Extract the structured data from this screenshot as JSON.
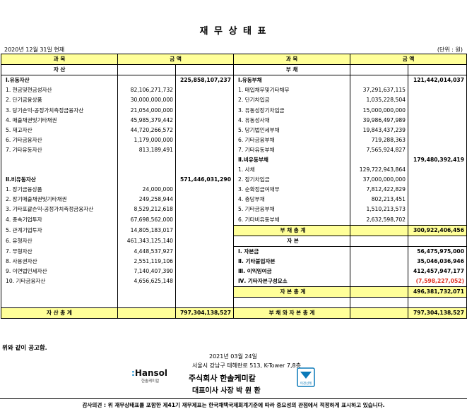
{
  "title": "재 무 상 태 표",
  "date_left": "2020년 12월 31일 현재",
  "unit_right": "(단위 : 원)",
  "headers": {
    "left_item": "과          목",
    "left_amount": "금          액",
    "right_item": "과          목",
    "right_amount": "금          액"
  },
  "subheaders": {
    "assets": "자          산",
    "liabilities": "부          채"
  },
  "left_rows": [
    {
      "label": "Ⅰ.유동자산",
      "a": "",
      "b": "225,858,107,237",
      "bold": true
    },
    {
      "label": "1. 현금및현금성자산",
      "a": "82,106,271,732",
      "b": ""
    },
    {
      "label": "2. 단기금융상품",
      "a": "30,000,000,000",
      "b": ""
    },
    {
      "label": "3. 당기손익-공정가치측정금융자산",
      "a": "21,054,000,000",
      "b": ""
    },
    {
      "label": "4. 매출채권및기타채권",
      "a": "45,985,379,442",
      "b": ""
    },
    {
      "label": "5. 재고자산",
      "a": "44,720,266,572",
      "b": ""
    },
    {
      "label": "6. 기타금융자산",
      "a": "1,179,000,000",
      "b": ""
    },
    {
      "label": "7. 기타유동자산",
      "a": "813,189,491",
      "b": ""
    },
    {
      "label": "",
      "a": "",
      "b": ""
    },
    {
      "label": "",
      "a": "",
      "b": ""
    },
    {
      "label": "Ⅱ.비유동자산",
      "a": "",
      "b": "571,446,031,290",
      "bold": true
    },
    {
      "label": "1. 장기금융상품",
      "a": "24,000,000",
      "b": ""
    },
    {
      "label": "2. 장기매출채권및기타채권",
      "a": "249,258,944",
      "b": ""
    },
    {
      "label": "3. 기타포괄손익-공정가치측정금융자산",
      "a": "8,529,212,618",
      "b": ""
    },
    {
      "label": "4. 종속기업투자",
      "a": "67,698,562,000",
      "b": ""
    },
    {
      "label": "5. 관계기업투자",
      "a": "14,805,183,017",
      "b": ""
    },
    {
      "label": "6. 유형자산",
      "a": "461,343,125,140",
      "b": ""
    },
    {
      "label": "7. 무형자산",
      "a": "4,448,537,927",
      "b": ""
    },
    {
      "label": "8. 사용권자산",
      "a": "2,551,119,106",
      "b": ""
    },
    {
      "label": "9. 이연법인세자산",
      "a": "7,140,407,390",
      "b": ""
    },
    {
      "label": "10. 기타금융자산",
      "a": "4,656,625,148",
      "b": ""
    },
    {
      "label": "",
      "a": "",
      "b": ""
    },
    {
      "label": "",
      "a": "",
      "b": ""
    }
  ],
  "right_rows": [
    {
      "label": "Ⅰ.유동부채",
      "a": "",
      "b": "121,442,014,037",
      "bold": true
    },
    {
      "label": "1. 매입채무및기타채무",
      "a": "37,291,637,115",
      "b": ""
    },
    {
      "label": "2. 단기차입금",
      "a": "1,035,228,504",
      "b": ""
    },
    {
      "label": "3. 유동성장기차입금",
      "a": "15,000,000,000",
      "b": ""
    },
    {
      "label": "4. 유동성사채",
      "a": "39,986,497,989",
      "b": ""
    },
    {
      "label": "5. 당기법인세부채",
      "a": "19,843,437,239",
      "b": ""
    },
    {
      "label": "6. 기타금융부채",
      "a": "719,288,363",
      "b": ""
    },
    {
      "label": "7. 기타유동부채",
      "a": "7,565,924,827",
      "b": ""
    },
    {
      "label": "Ⅱ.비유동부채",
      "a": "",
      "b": "179,480,392,419",
      "bold": true
    },
    {
      "label": "1. 사채",
      "a": "129,722,943,864",
      "b": ""
    },
    {
      "label": "2. 장기차입금",
      "a": "37,000,000,000",
      "b": ""
    },
    {
      "label": "3. 순확정급여채무",
      "a": "7,812,422,829",
      "b": ""
    },
    {
      "label": "4. 충당부채",
      "a": "802,213,451",
      "b": ""
    },
    {
      "label": "5. 기타금융부채",
      "a": "1,510,213,573",
      "b": ""
    },
    {
      "label": "6. 기타비유동부채",
      "a": "2,632,598,702",
      "b": ""
    },
    {
      "label": "부     채     총     계",
      "a": "",
      "b": "300,922,406,456",
      "type": "total"
    },
    {
      "label": "자          본",
      "a": "",
      "b": "",
      "type": "sub"
    },
    {
      "label": "Ⅰ. 자본금",
      "a": "",
      "b": "56,475,975,000",
      "bold": true
    },
    {
      "label": "Ⅱ. 기타불입자본",
      "a": "",
      "b": "35,046,036,946",
      "bold": true
    },
    {
      "label": "Ⅲ. 이익잉여금",
      "a": "",
      "b": "412,457,947,177",
      "bold": true
    },
    {
      "label": "Ⅳ. 기타자본구성요소",
      "a": "",
      "b": "(7,598,227,052)",
      "bold": true,
      "red": true
    },
    {
      "label": "자     본     총     계",
      "a": "",
      "b": "496,381,732,071",
      "type": "total"
    },
    {
      "label": "",
      "a": "",
      "b": ""
    }
  ],
  "totals": {
    "assets_label": "자     산     총     계",
    "assets_value": "797,304,138,527",
    "liab_equity_label": "부 채 와 자 본 총 계",
    "liab_equity_value": "797,304,138,527"
  },
  "footer": {
    "announce": "위와 같이 공고함.",
    "date": "2021년 03월 24일",
    "address": "서울시 강남구 테헤란로 513, K-Tower 7,8층",
    "company": "주식회사 한솔케미칼",
    "ceo": "대표이사 사장  박 원 환",
    "logo_text": "Hansol",
    "logo_sub": "한솔케미칼",
    "seal_text": "이천선레",
    "audit": "감사의견 : 위 재무상태표를 포함한 제41기 재무제표는 한국채택국제회계기준에 따라 중요성의 관점에서 적정하게 표시하고 있습니다."
  },
  "colors": {
    "header_fill": "#ffff99",
    "negative": "#e0301e",
    "logo_accent": "#1a8fd0",
    "seal": "#0a79b8"
  }
}
